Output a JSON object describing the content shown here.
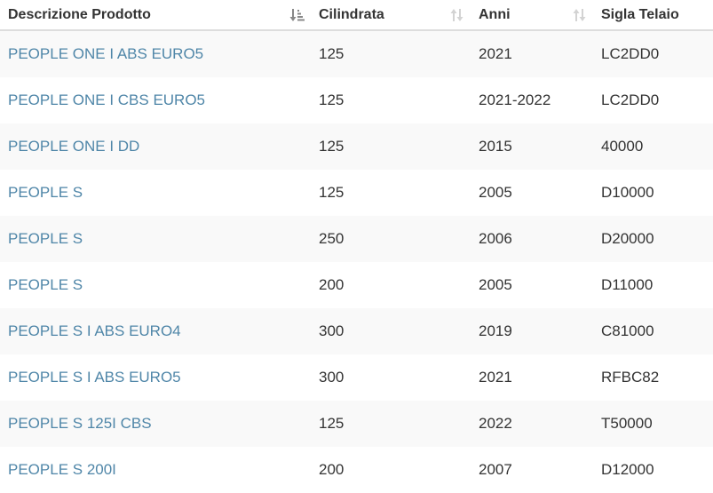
{
  "columns": [
    {
      "label": "Descrizione Prodotto",
      "sort_icon": "sort-amount-down-icon",
      "sort_state": "active"
    },
    {
      "label": "Cilindrata",
      "sort_icon": "sort-both-icon",
      "sort_state": "inactive"
    },
    {
      "label": "Anni",
      "sort_icon": "sort-both-icon",
      "sort_state": "inactive"
    },
    {
      "label": "Sigla Telaio",
      "sort_icon": "",
      "sort_state": "none"
    }
  ],
  "rows": [
    {
      "product": "PEOPLE ONE I ABS EURO5",
      "cc": "125",
      "years": "2021",
      "frame": "LC2DD0"
    },
    {
      "product": "PEOPLE ONE I CBS EURO5",
      "cc": "125",
      "years": "2021-2022",
      "frame": "LC2DD0"
    },
    {
      "product": "PEOPLE ONE I DD",
      "cc": "125",
      "years": "2015",
      "frame": "40000"
    },
    {
      "product": "PEOPLE S",
      "cc": "125",
      "years": "2005",
      "frame": "D10000"
    },
    {
      "product": "PEOPLE S",
      "cc": "250",
      "years": "2006",
      "frame": "D20000"
    },
    {
      "product": "PEOPLE S",
      "cc": "200",
      "years": "2005",
      "frame": "D11000"
    },
    {
      "product": "PEOPLE S I ABS EURO4",
      "cc": "300",
      "years": "2019",
      "frame": "C81000"
    },
    {
      "product": "PEOPLE S I ABS EURO5",
      "cc": "300",
      "years": "2021",
      "frame": "RFBC82"
    },
    {
      "product": "PEOPLE S 125I CBS",
      "cc": "125",
      "years": "2022",
      "frame": "T50000"
    },
    {
      "product": "PEOPLE S 200I",
      "cc": "200",
      "years": "2007",
      "frame": "D12000"
    }
  ],
  "colors": {
    "link": "#4f86a8",
    "text": "#333333",
    "stripe": "#f9f9f9",
    "header_border": "#dddddd",
    "icon_active": "#888888",
    "icon_inactive": "#d3d3d3"
  }
}
